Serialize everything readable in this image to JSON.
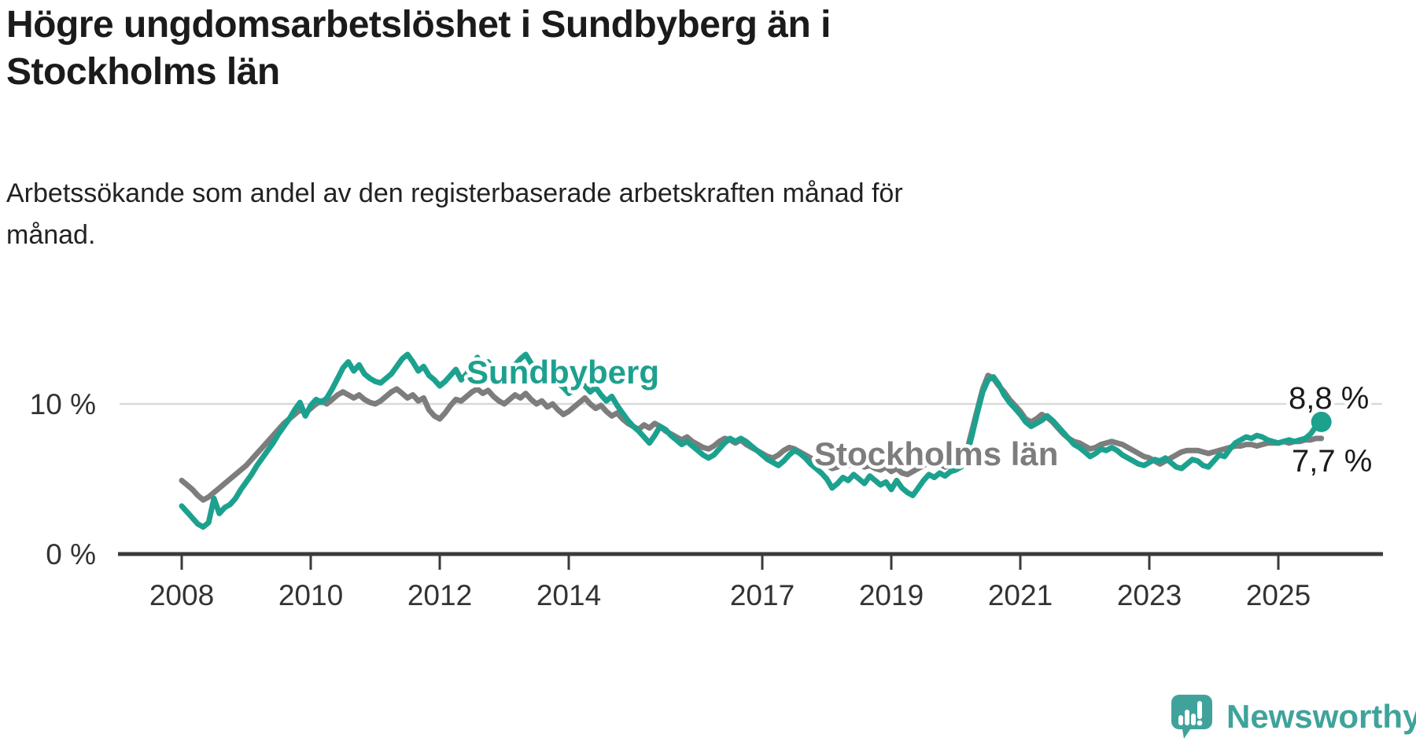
{
  "title": {
    "line1": "Högre ungdomsarbetslöshet i Sundbyberg än i",
    "line2": "Stockholms län"
  },
  "subtitle": {
    "line1": "Arbetssökande som andel av den registerbaserade arbetskraften månad för",
    "line2": "månad."
  },
  "colors": {
    "accent_teal": "#1da18f",
    "series_gray": "#7d7d7d",
    "grid": "#d9d9d9",
    "axis": "#3a3a3a",
    "text_dark": "#1b1b1b",
    "axis_label": "#333333",
    "logo_teal": "#3fa39b"
  },
  "logo": {
    "text": "Newsworthy"
  },
  "chart_data": {
    "type": "line",
    "unit": "%",
    "x_range": {
      "start": "2008-01",
      "end": "2025-09",
      "interval": "monthly"
    },
    "x_tick_years": [
      2008,
      2010,
      2012,
      2014,
      2017,
      2019,
      2021,
      2023,
      2025
    ],
    "y_axis_labels": [
      {
        "text": "0 %",
        "value": 0
      },
      {
        "text": "10 %",
        "value": 10
      }
    ],
    "gridline_values": [
      10
    ],
    "ylim": [
      0,
      14
    ],
    "legend_position": "inline-labels",
    "series": [
      {
        "name": "Stockholms län",
        "color": "#7d7d7d",
        "end_label": "7,7 %",
        "end_dot": false,
        "values": [
          4.9,
          4.6,
          4.3,
          3.9,
          3.6,
          3.8,
          4.1,
          4.4,
          4.7,
          5.0,
          5.3,
          5.6,
          5.9,
          6.3,
          6.7,
          7.1,
          7.5,
          7.9,
          8.3,
          8.7,
          9.0,
          9.3,
          9.6,
          9.4,
          9.7,
          10.0,
          10.2,
          10.0,
          10.3,
          10.6,
          10.8,
          10.6,
          10.4,
          10.6,
          10.3,
          10.1,
          10.0,
          10.2,
          10.5,
          10.8,
          11.0,
          10.7,
          10.4,
          10.6,
          10.2,
          10.4,
          9.6,
          9.2,
          9.0,
          9.4,
          9.9,
          10.3,
          10.2,
          10.5,
          10.8,
          11.0,
          10.7,
          10.9,
          10.5,
          10.2,
          10.0,
          10.3,
          10.6,
          10.4,
          10.7,
          10.3,
          10.0,
          10.2,
          9.8,
          10.0,
          9.6,
          9.3,
          9.5,
          9.8,
          10.1,
          10.4,
          10.0,
          9.7,
          9.9,
          9.5,
          9.2,
          9.4,
          9.0,
          8.7,
          8.5,
          8.3,
          8.6,
          8.4,
          8.7,
          8.5,
          8.2,
          8.0,
          7.8,
          7.6,
          7.8,
          7.5,
          7.3,
          7.1,
          7.0,
          7.2,
          7.5,
          7.7,
          7.6,
          7.4,
          7.6,
          7.3,
          7.1,
          6.9,
          6.7,
          6.5,
          6.4,
          6.6,
          6.9,
          7.1,
          7.0,
          6.8,
          6.6,
          6.4,
          6.2,
          6.0,
          5.9,
          5.7,
          5.8,
          6.0,
          5.9,
          6.1,
          6.0,
          5.8,
          5.9,
          5.7,
          5.6,
          5.8,
          5.5,
          5.7,
          5.4,
          5.3,
          5.5,
          5.7,
          5.9,
          6.1,
          5.9,
          6.0,
          5.8,
          5.9,
          6.0,
          6.2,
          6.8,
          8.2,
          9.6,
          11.0,
          11.9,
          11.7,
          11.2,
          10.8,
          10.3,
          9.9,
          9.5,
          9.0,
          8.8,
          9.0,
          9.3,
          9.1,
          8.8,
          8.4,
          8.0,
          7.7,
          7.5,
          7.4,
          7.2,
          7.0,
          7.1,
          7.3,
          7.4,
          7.5,
          7.4,
          7.3,
          7.1,
          6.9,
          6.7,
          6.5,
          6.4,
          6.2,
          6.0,
          6.2,
          6.4,
          6.6,
          6.8,
          6.9,
          6.9,
          6.9,
          6.8,
          6.7,
          6.8,
          6.9,
          7.0,
          7.1,
          7.2,
          7.2,
          7.3,
          7.3,
          7.2,
          7.3,
          7.4,
          7.4,
          7.4,
          7.5,
          7.4,
          7.5,
          7.5,
          7.6,
          7.6,
          7.7,
          7.7
        ]
      },
      {
        "name": "Sundbyberg",
        "color": "#1da18f",
        "end_label": "8,8 %",
        "end_dot": true,
        "values": [
          3.2,
          2.8,
          2.4,
          2.0,
          1.8,
          2.1,
          3.7,
          2.7,
          3.1,
          3.3,
          3.7,
          4.3,
          4.8,
          5.3,
          5.9,
          6.4,
          6.9,
          7.4,
          8.0,
          8.5,
          9.0,
          9.6,
          10.1,
          9.2,
          9.9,
          10.3,
          10.1,
          10.4,
          11.0,
          11.7,
          12.4,
          12.8,
          12.2,
          12.6,
          12.0,
          11.7,
          11.5,
          11.4,
          11.7,
          12.0,
          12.5,
          13.0,
          13.3,
          12.8,
          12.2,
          12.5,
          11.9,
          11.6,
          11.2,
          11.5,
          11.9,
          12.3,
          11.6,
          12.0,
          12.6,
          13.1,
          12.5,
          12.8,
          12.3,
          12.0,
          11.7,
          12.1,
          12.6,
          13.0,
          13.3,
          12.7,
          12.1,
          12.4,
          11.8,
          12.0,
          11.4,
          11.1,
          10.7,
          11.0,
          11.4,
          11.2,
          10.8,
          11.1,
          10.6,
          10.2,
          10.5,
          9.9,
          9.4,
          8.9,
          8.5,
          8.2,
          7.8,
          7.4,
          7.9,
          8.5,
          8.3,
          7.9,
          7.6,
          7.3,
          7.5,
          7.2,
          6.9,
          6.6,
          6.4,
          6.6,
          7.0,
          7.4,
          7.7,
          7.5,
          7.7,
          7.5,
          7.2,
          6.9,
          6.6,
          6.3,
          6.1,
          5.9,
          6.2,
          6.6,
          6.9,
          6.7,
          6.4,
          6.0,
          5.7,
          5.4,
          5.0,
          4.4,
          4.7,
          5.1,
          4.9,
          5.3,
          5.0,
          4.7,
          5.2,
          4.9,
          4.6,
          4.8,
          4.3,
          4.9,
          4.4,
          4.1,
          3.9,
          4.4,
          4.9,
          5.3,
          5.1,
          5.4,
          5.2,
          5.5,
          5.6,
          5.8,
          6.5,
          7.9,
          9.4,
          10.8,
          11.6,
          11.8,
          11.3,
          10.6,
          10.1,
          9.7,
          9.3,
          8.8,
          8.5,
          8.7,
          8.9,
          9.2,
          8.9,
          8.5,
          8.1,
          7.7,
          7.3,
          7.1,
          6.8,
          6.5,
          6.7,
          7.0,
          6.9,
          7.1,
          6.9,
          6.6,
          6.4,
          6.2,
          6.0,
          5.9,
          6.1,
          6.3,
          6.2,
          6.4,
          6.1,
          5.8,
          5.7,
          6.0,
          6.3,
          6.2,
          5.9,
          5.8,
          6.2,
          6.6,
          6.5,
          7.0,
          7.4,
          7.6,
          7.8,
          7.7,
          7.9,
          7.8,
          7.6,
          7.5,
          7.4,
          7.5,
          7.6,
          7.5,
          7.6,
          7.7,
          8.0,
          8.5,
          8.8
        ]
      }
    ]
  }
}
